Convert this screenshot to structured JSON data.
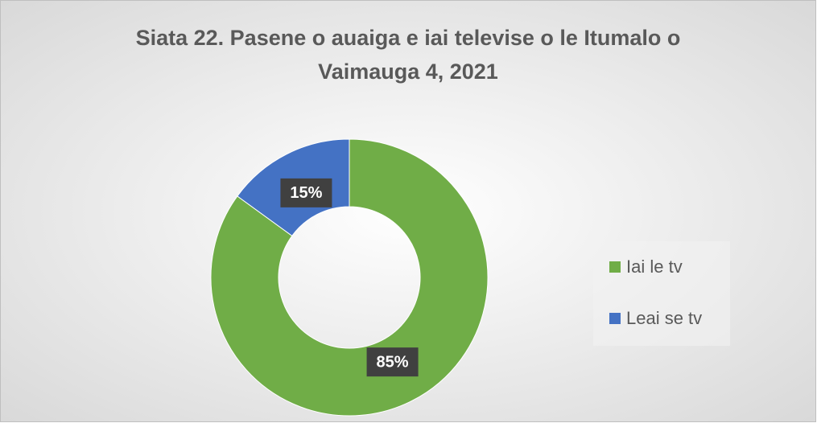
{
  "chart_data": {
    "type": "donut",
    "title": "Siata 22. Pasene o auaiga e iai televise o le Itumalo o Vaimauga 4, 2021",
    "categories": [
      "Iai le tv",
      "Leai se tv"
    ],
    "values": [
      85,
      15
    ],
    "value_labels": [
      "85%",
      "15%"
    ],
    "colors": [
      "#70ad47",
      "#4472c4"
    ],
    "legend": "right"
  }
}
